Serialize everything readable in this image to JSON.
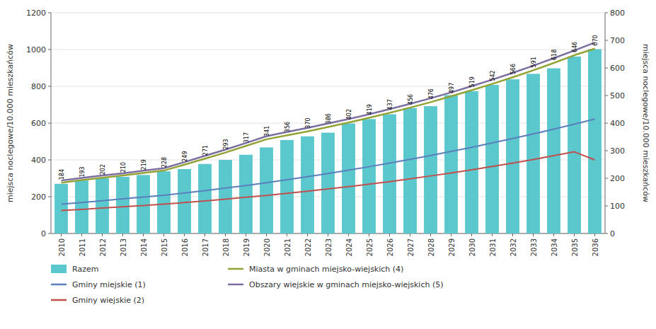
{
  "chart_data": {
    "type": "bar",
    "categories": [
      "2010",
      "2011",
      "2012",
      "2013",
      "2014",
      "2015",
      "2016",
      "2017",
      "2018",
      "2019",
      "2020",
      "2021",
      "2022",
      "2023",
      "2024",
      "2025",
      "2026",
      "2027",
      "2028",
      "2029",
      "2030",
      "2031",
      "2032",
      "2033",
      "2034",
      "2035",
      "2036"
    ],
    "series": [
      {
        "name": "Razem",
        "type": "bar",
        "color": "#5bc8cd",
        "values": [
          270,
          288,
          300,
          308,
          318,
          338,
          350,
          378,
          400,
          428,
          468,
          508,
          528,
          548,
          598,
          622,
          648,
          682,
          692,
          752,
          774,
          808,
          838,
          868,
          898,
          962,
          1002
        ]
      },
      {
        "name": "Gminy miejskie (1)",
        "type": "line",
        "color": "#5b7fbc",
        "values": [
          160,
          168,
          178,
          188,
          198,
          208,
          220,
          233,
          247,
          261,
          276,
          292,
          309,
          326,
          344,
          363,
          383,
          403,
          424,
          446,
          468,
          492,
          516,
          541,
          567,
          594,
          622
        ]
      },
      {
        "name": "Gminy wiejskie (2)",
        "type": "line",
        "color": "#c0504d",
        "values": [
          125,
          131,
          138,
          145,
          152,
          160,
          168,
          177,
          187,
          197,
          207,
          218,
          230,
          242,
          255,
          268,
          282,
          297,
          313,
          329,
          346,
          364,
          383,
          402,
          423,
          444,
          400
        ]
      },
      {
        "name": "Miasta w gminach miejsko-wiejskich (4)",
        "type": "line",
        "color": "#93a336",
        "values": [
          276,
          290,
          303,
          315,
          329,
          342,
          374,
          407,
          440,
          476,
          512,
          534,
          555,
          579,
          603,
          629,
          656,
          684,
          714,
          746,
          779,
          813,
          849,
          887,
          927,
          969,
          1005
        ]
      },
      {
        "name": "Obszary wiejskie w gminach miejsko-wiejskich (5)",
        "type": "line",
        "color": "#7c6fa0",
        "values": [
          288,
          302,
          315,
          327,
          341,
          355,
          388,
          422,
          456,
          492,
          529,
          552,
          574,
          598,
          622,
          648,
          676,
          705,
          735,
          767,
          801,
          836,
          873,
          912,
          953,
          995,
          1038
        ]
      }
    ],
    "annotations": [
      184,
      193,
      202,
      210,
      219,
      228,
      249,
      271,
      293,
      317,
      341,
      356,
      370,
      386,
      402,
      419,
      437,
      456,
      476,
      497,
      519,
      542,
      566,
      591,
      618,
      646,
      670
    ],
    "ylabel": "miejsca noclegowe/10.000 mieszkańców",
    "y2label": "miejsca noclegowe/10.000 mieszkańców",
    "ylim": [
      0,
      1200
    ],
    "yticks": [
      0,
      200,
      400,
      600,
      800,
      1000,
      1200
    ],
    "y2lim": [
      0,
      800
    ],
    "y2ticks": [
      0,
      100,
      200,
      300,
      400,
      500,
      600,
      700,
      800
    ],
    "grid": true,
    "legend": "bottom"
  }
}
